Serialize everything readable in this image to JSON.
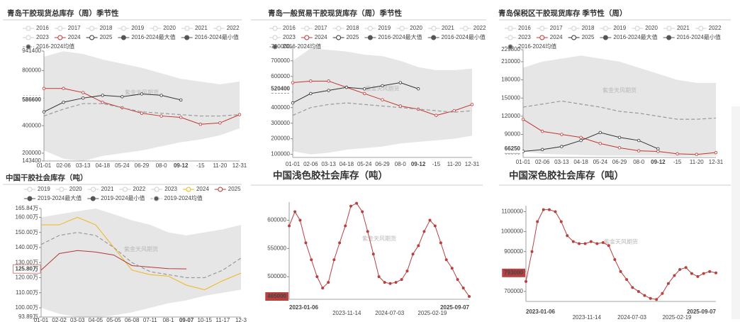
{
  "chart_data": [
    {
      "type": "line",
      "title": "青岛干胶现货总库存（周）季节性",
      "watermark": "紫金天风期货",
      "categories": [
        "01-01",
        "02-06",
        "03-13",
        "04-18",
        "05-24",
        "06-29",
        "08-0",
        "09-12",
        "-15",
        "11-20",
        "12-31"
      ],
      "ylim": [
        143400,
        941400
      ],
      "yticks": [
        143400,
        200000,
        400000,
        600000,
        800000,
        941400
      ],
      "series": [
        {
          "name": "2016",
          "color": "#cfcfcf",
          "disabled": true
        },
        {
          "name": "2017",
          "color": "#cfcfcf",
          "disabled": true
        },
        {
          "name": "2018",
          "color": "#cfcfcf",
          "disabled": true
        },
        {
          "name": "2019",
          "color": "#cfcfcf",
          "disabled": true
        },
        {
          "name": "2020",
          "color": "#cfcfcf",
          "disabled": true
        },
        {
          "name": "2021",
          "color": "#cfcfcf",
          "disabled": true
        },
        {
          "name": "2022",
          "color": "#cfcfcf",
          "disabled": true
        },
        {
          "name": "2023",
          "color": "#cfcfcf",
          "disabled": true
        },
        {
          "name": "2024",
          "color": "#c23531",
          "markers": true,
          "values": [
            670000,
            670000,
            640000,
            570000,
            530000,
            490000,
            470000,
            460000,
            410000,
            420000,
            480000
          ]
        },
        {
          "name": "2025",
          "color": "#333333",
          "markers": true,
          "current": true,
          "values": [
            500000,
            570000,
            600000,
            620000,
            610000,
            630000,
            620000,
            586600,
            null,
            null,
            null
          ]
        },
        {
          "name": "2016-2024最大值",
          "color": "#555555",
          "band": "upper",
          "values": [
            900000,
            940000,
            920000,
            880000,
            850000,
            820000,
            780000,
            740000,
            720000,
            700000,
            720000
          ]
        },
        {
          "name": "2016-2024最小值",
          "color": "#555555",
          "band": "lower",
          "values": [
            220000,
            160000,
            143400,
            180000,
            200000,
            220000,
            250000,
            280000,
            300000,
            330000,
            380000
          ]
        },
        {
          "name": "2016-2024均值",
          "color": "#999999",
          "dashed": true,
          "values": [
            470000,
            520000,
            560000,
            560000,
            530000,
            500000,
            490000,
            480000,
            470000,
            470000,
            480000
          ]
        }
      ]
    },
    {
      "type": "line",
      "title": "青岛一般贸易干胶现货库存（周）季节性",
      "watermark": "紫金天风期货",
      "categories": [
        "01-01",
        "02-06",
        "03-13",
        "04-18",
        "05-24",
        "06-29",
        "08-0",
        "09-12",
        "-15",
        "11-20",
        "12-31"
      ],
      "ylim": [
        80000,
        790000
      ],
      "yticks": [
        100000,
        200000,
        300000,
        400000,
        500000,
        600000,
        700000,
        790000
      ],
      "series": [
        {
          "name": "2016",
          "color": "#cfcfcf",
          "disabled": true
        },
        {
          "name": "2017",
          "color": "#cfcfcf",
          "disabled": true
        },
        {
          "name": "2018",
          "color": "#cfcfcf",
          "disabled": true
        },
        {
          "name": "2019",
          "color": "#cfcfcf",
          "disabled": true
        },
        {
          "name": "2020",
          "color": "#cfcfcf",
          "disabled": true
        },
        {
          "name": "2021",
          "color": "#cfcfcf",
          "disabled": true
        },
        {
          "name": "2022",
          "color": "#cfcfcf",
          "disabled": true
        },
        {
          "name": "2023",
          "color": "#cfcfcf",
          "disabled": true
        },
        {
          "name": "2024",
          "color": "#c23531",
          "markers": true,
          "values": [
            560000,
            570000,
            570000,
            530000,
            490000,
            450000,
            410000,
            390000,
            350000,
            380000,
            420000
          ]
        },
        {
          "name": "2025",
          "color": "#333333",
          "markers": true,
          "current": true,
          "values": [
            430000,
            490000,
            510000,
            530000,
            520000,
            540000,
            560000,
            520400,
            null,
            null,
            null
          ]
        },
        {
          "name": "2016-2024最大值",
          "color": "#555555",
          "band": "upper",
          "values": [
            700000,
            780000,
            770000,
            760000,
            740000,
            730000,
            700000,
            660000,
            640000,
            640000,
            650000
          ]
        },
        {
          "name": "2016-2024最小值",
          "color": "#555555",
          "band": "lower",
          "values": [
            120000,
            100000,
            110000,
            130000,
            140000,
            150000,
            170000,
            180000,
            190000,
            200000,
            220000
          ]
        },
        {
          "name": "2016-2024均值",
          "color": "#999999",
          "dashed": true,
          "values": [
            350000,
            400000,
            420000,
            430000,
            420000,
            410000,
            400000,
            390000,
            380000,
            370000,
            380000
          ]
        }
      ]
    },
    {
      "type": "line",
      "title": "青岛保税区干胶现货库存 季节性（周）",
      "watermark": "紫金天风期货",
      "categories": [
        "01-01",
        "02-06",
        "03-13",
        "04-18",
        "05-24",
        "06-29",
        "08-0",
        "09-12",
        "-15",
        "11-20",
        "12-31"
      ],
      "ylim": [
        52000,
        229800
      ],
      "yticks": [
        60000,
        90000,
        120000,
        150000,
        180000,
        210000,
        229800
      ],
      "series": [
        {
          "name": "2016",
          "color": "#cfcfcf",
          "disabled": true
        },
        {
          "name": "2017",
          "color": "#cfcfcf",
          "disabled": true
        },
        {
          "name": "2018",
          "color": "#cfcfcf",
          "disabled": true
        },
        {
          "name": "2019",
          "color": "#cfcfcf",
          "disabled": true
        },
        {
          "name": "2020",
          "color": "#cfcfcf",
          "disabled": true
        },
        {
          "name": "2021",
          "color": "#cfcfcf",
          "disabled": true
        },
        {
          "name": "2022",
          "color": "#cfcfcf",
          "disabled": true
        },
        {
          "name": "2023",
          "color": "#cfcfcf",
          "disabled": true
        },
        {
          "name": "2024",
          "color": "#c23531",
          "markers": true,
          "values": [
            115000,
            95000,
            90000,
            85000,
            75000,
            68000,
            63000,
            62000,
            58000,
            57000,
            60000
          ]
        },
        {
          "name": "2025",
          "color": "#333333",
          "markers": true,
          "current": true,
          "values": [
            62000,
            65000,
            70000,
            80000,
            93000,
            85000,
            80000,
            66250,
            null,
            null,
            null
          ]
        },
        {
          "name": "2016-2024最大值",
          "color": "#555555",
          "band": "upper",
          "values": [
            200000,
            210000,
            215000,
            220000,
            215000,
            210000,
            200000,
            190000,
            180000,
            175000,
            175000
          ]
        },
        {
          "name": "2016-2024最小值",
          "color": "#555555",
          "band": "lower",
          "values": [
            62000,
            58000,
            57000,
            56000,
            55000,
            55000,
            55000,
            55000,
            54000,
            54000,
            55000
          ]
        },
        {
          "name": "2016-2024均值",
          "color": "#999999",
          "dashed": true,
          "values": [
            135000,
            140000,
            145000,
            140000,
            135000,
            128000,
            125000,
            120000,
            115000,
            115000,
            117000
          ]
        }
      ]
    },
    {
      "type": "line",
      "title": "中国干胶社会库存（吨）",
      "watermark": "紫金天风期货",
      "categories": [
        "01-01",
        "02-02",
        "03-03",
        "04-05",
        "05-05",
        "06-08",
        "07-11",
        "08-1",
        "09-07",
        "10-15",
        "11-17",
        "12-3"
      ],
      "ylim": [
        93.89,
        165.84
      ],
      "yticks": [
        {
          "value": 93.89,
          "label": "93.89万"
        },
        {
          "value": 100,
          "label": "100.00万"
        },
        {
          "value": 110,
          "label": "110.00万"
        },
        {
          "value": 120,
          "label": "120.00万"
        },
        {
          "value": 130,
          "label": "130.00万"
        },
        {
          "value": 140,
          "label": "140.00万"
        },
        {
          "value": 150,
          "label": "150.00万"
        },
        {
          "value": 160,
          "label": "160.00万"
        },
        {
          "value": 165.84,
          "label": "165.84万"
        }
      ],
      "series": [
        {
          "name": "2019",
          "color": "#cfcfcf",
          "disabled": true
        },
        {
          "name": "2020",
          "color": "#cfcfcf",
          "disabled": true
        },
        {
          "name": "2021",
          "color": "#cfcfcf",
          "disabled": true
        },
        {
          "name": "2022",
          "color": "#cfcfcf",
          "disabled": true
        },
        {
          "name": "2023",
          "color": "#cfcfcf",
          "disabled": true
        },
        {
          "name": "2024",
          "color": "#f0b619",
          "values": [
            155,
            155,
            160,
            155,
            140,
            125,
            122,
            121,
            115,
            112,
            118,
            123
          ]
        },
        {
          "name": "2025",
          "color": "#b03a3a",
          "current": true,
          "values": [
            125,
            136,
            138,
            137,
            135,
            128,
            127,
            126,
            125.8,
            null,
            null,
            null
          ],
          "value_labels": [
            null,
            null,
            null,
            null,
            null,
            null,
            null,
            null,
            "125.80万",
            null,
            null,
            null
          ]
        },
        {
          "name": "2019-2024最大值",
          "color": "#555555",
          "band": "upper",
          "values": [
            160,
            162,
            164,
            165.84,
            162,
            158,
            155,
            150,
            148,
            150,
            152,
            155
          ]
        },
        {
          "name": "2019-2024最小值",
          "color": "#555555",
          "band": "lower",
          "values": [
            100,
            96,
            94,
            93.89,
            95,
            97,
            100,
            103,
            105,
            108,
            110,
            112
          ]
        },
        {
          "name": "2019-2024均值",
          "color": "#999999",
          "dashed": true,
          "values": [
            142,
            148,
            150,
            148,
            140,
            130,
            124,
            122,
            120,
            120,
            125,
            133
          ]
        }
      ]
    },
    {
      "type": "line",
      "title": "中国浅色胶社会库存（吨）",
      "watermark": "紫金天风期货",
      "x": [
        "2023-01-06",
        "2023-02-06",
        "2023-03-06",
        "2023-04-06",
        "2023-05-06",
        "2023-06-06",
        "2023-07-06",
        "2023-08-06",
        "2023-09-06",
        "2023-10-06",
        "2023-11-06",
        "2023-12-06",
        "2024-01-06",
        "2024-02-06",
        "2024-03-06",
        "2024-04-06",
        "2024-05-06",
        "2024-06-06",
        "2024-07-06",
        "2024-08-06",
        "2024-09-06",
        "2024-10-06",
        "2024-11-06",
        "2024-12-06",
        "2025-01-06",
        "2025-02-06",
        "2025-03-06",
        "2025-04-06",
        "2025-05-06",
        "2025-06-06",
        "2025-07-06",
        "2025-08-06",
        "2025-09-07"
      ],
      "xticks": [
        "2023-01-06",
        "2023-11-14",
        "2024-07-03",
        "2025-02-19",
        "2025-09-07"
      ],
      "ylim": [
        460000,
        632000
      ],
      "yticks": [
        500000,
        550000,
        600000
      ],
      "series": [
        {
          "color": "#b84040",
          "markers": true,
          "current": true,
          "values": [
            590000,
            615000,
            600000,
            560000,
            530000,
            500000,
            480000,
            490000,
            530000,
            560000,
            590000,
            625000,
            630000,
            615000,
            580000,
            540000,
            500000,
            490000,
            488000,
            490000,
            495000,
            510000,
            540000,
            555000,
            580000,
            600000,
            590000,
            560000,
            530000,
            515000,
            495000,
            480000,
            465000
          ]
        }
      ]
    },
    {
      "type": "line",
      "title": "中国深色胶社会库存（吨）",
      "watermark": "紫金天风期货",
      "x": [
        "2023-01-06",
        "2023-02-06",
        "2023-03-06",
        "2023-04-06",
        "2023-05-06",
        "2023-06-06",
        "2023-07-06",
        "2023-08-06",
        "2023-09-06",
        "2023-10-06",
        "2023-11-06",
        "2023-12-06",
        "2024-01-06",
        "2024-02-06",
        "2024-03-06",
        "2024-04-06",
        "2024-05-06",
        "2024-06-06",
        "2024-07-06",
        "2024-08-06",
        "2024-09-06",
        "2024-10-06",
        "2024-11-06",
        "2024-12-06",
        "2025-01-06",
        "2025-02-06",
        "2025-03-06",
        "2025-04-06",
        "2025-05-06",
        "2025-06-06",
        "2025-07-06",
        "2025-08-06",
        "2025-09-07"
      ],
      "xticks": [
        "2023-01-06",
        "2023-11-14",
        "2024-07-03",
        "2025-02-19",
        "2025-09-07"
      ],
      "ylim": [
        650000,
        1130000
      ],
      "yticks": [
        700000,
        800000,
        900000,
        1000000,
        1100000
      ],
      "series": [
        {
          "color": "#b84040",
          "markers": true,
          "current": true,
          "values": [
            750000,
            900000,
            1050000,
            1110000,
            1110000,
            1100000,
            1050000,
            980000,
            950000,
            940000,
            940000,
            950000,
            940000,
            945000,
            930000,
            860000,
            800000,
            760000,
            720000,
            700000,
            680000,
            665000,
            660000,
            690000,
            740000,
            780000,
            810000,
            820000,
            790000,
            775000,
            790000,
            800000,
            793000
          ]
        }
      ]
    }
  ]
}
